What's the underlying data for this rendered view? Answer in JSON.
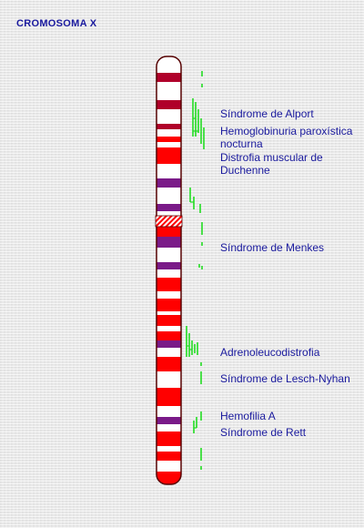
{
  "title": "CROMOSOMA X",
  "colors": {
    "text": "#1a1a9e",
    "band_red": "#ff0000",
    "band_dark_red": "#b0002a",
    "band_purple": "#7a1a88",
    "band_white": "#ffffff",
    "marker": "#22dd22",
    "outline": "#550000"
  },
  "diseases": [
    {
      "line1": "Síndrome de Alport",
      "line2": ""
    },
    {
      "line1": "Hemoglobinuria paroxística",
      "line2": "nocturna"
    },
    {
      "line1": "Distrofia muscular de",
      "line2": "Duchenne"
    },
    {
      "line1": "Síndrome de Menkes",
      "line2": ""
    },
    {
      "line1": "Adrenoleucodistrofia",
      "line2": ""
    },
    {
      "line1": "Síndrome de Lesch-Nyhan",
      "line2": ""
    },
    {
      "line1": "Hemofilia A",
      "line2": ""
    },
    {
      "line1": "Síndrome de Rett",
      "line2": ""
    }
  ]
}
